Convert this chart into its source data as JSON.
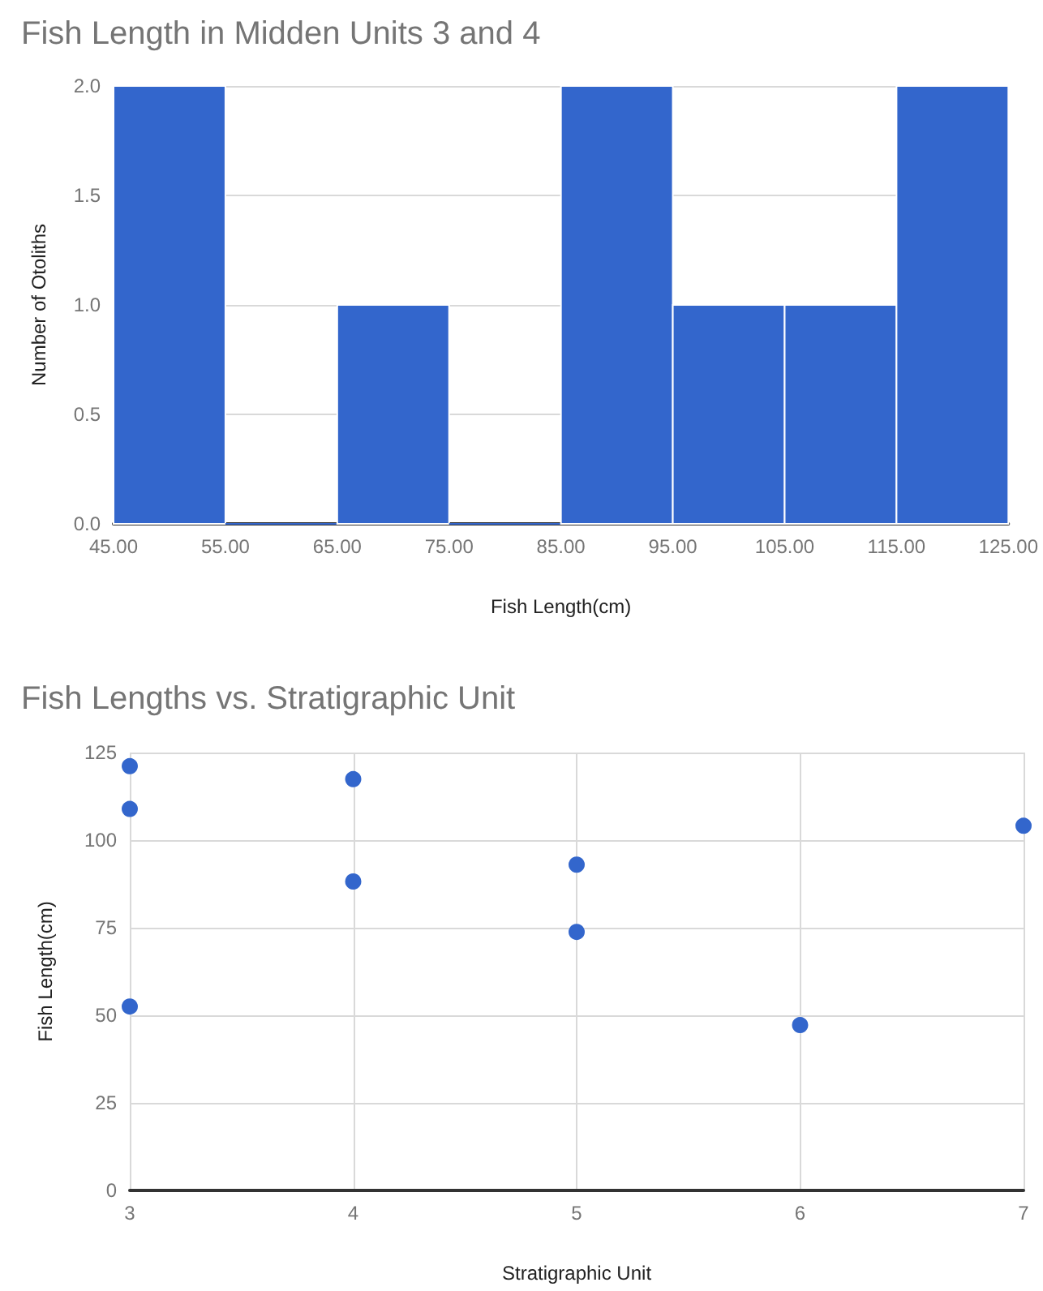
{
  "chart_data": [
    {
      "type": "histogram",
      "title": "Fish Length in Midden Units 3 and 4",
      "xlabel": "Fish Length(cm)",
      "ylabel": "Number of Otoliths",
      "color": "#3366cc",
      "bins": [
        45,
        55,
        65,
        75,
        85,
        95,
        105,
        115,
        125
      ],
      "values": [
        2,
        0,
        1,
        0,
        2,
        1,
        1,
        2
      ],
      "xlim": [
        45,
        125
      ],
      "xticks": [
        {
          "value": 45,
          "label": "45.00"
        },
        {
          "value": 55,
          "label": "55.00"
        },
        {
          "value": 65,
          "label": "65.00"
        },
        {
          "value": 75,
          "label": "75.00"
        },
        {
          "value": 85,
          "label": "85.00"
        },
        {
          "value": 95,
          "label": "95.00"
        },
        {
          "value": 105,
          "label": "105.00"
        },
        {
          "value": 115,
          "label": "115.00"
        },
        {
          "value": 125,
          "label": "125.00"
        }
      ],
      "ylim": [
        0,
        2
      ],
      "yticks": [
        {
          "value": 0,
          "label": "0.0"
        },
        {
          "value": 0.5,
          "label": "0.5"
        },
        {
          "value": 1,
          "label": "1.0"
        },
        {
          "value": 1.5,
          "label": "1.5"
        },
        {
          "value": 2,
          "label": "2.0"
        }
      ],
      "grid": "y"
    },
    {
      "type": "scatter",
      "title": "Fish Lengths vs. Stratigraphic Unit",
      "xlabel": "Stratigraphic Unit",
      "ylabel": "Fish Length(cm)",
      "color": "#3366cc",
      "marker": "circle",
      "x": [
        3,
        3,
        3,
        4,
        4,
        5,
        5,
        6,
        7
      ],
      "values": [
        121.1,
        108.9,
        52.5,
        117.4,
        88.2,
        93.0,
        73.8,
        47.2,
        104.1
      ],
      "xlim": [
        3,
        7
      ],
      "xticks": [
        3,
        4,
        5,
        6,
        7
      ],
      "ylim": [
        0,
        125
      ],
      "yticks": [
        0,
        25,
        50,
        75,
        100,
        125
      ],
      "grid": true
    }
  ]
}
